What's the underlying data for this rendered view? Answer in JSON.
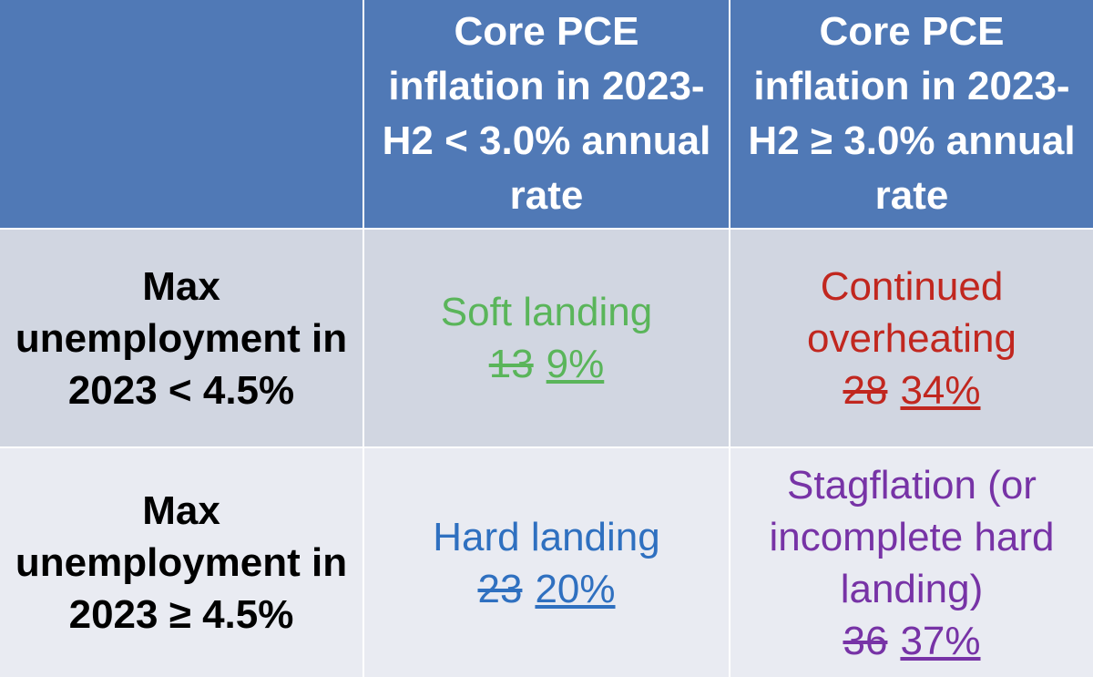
{
  "table": {
    "columns": [
      "Core PCE inflation in 2023-H2 < 3.0% annual rate",
      "Core PCE inflation in 2023-H2 ≥ 3.0% annual rate"
    ],
    "rows": [
      {
        "label": "Max unemployment in 2023 < 4.5%",
        "cells": [
          {
            "scenario": "Soft landing",
            "old": "13",
            "new": "9%"
          },
          {
            "scenario": "Continued overheating",
            "old": "28",
            "new": "34%"
          }
        ]
      },
      {
        "label": "Max unemployment in 2023 ≥ 4.5%",
        "cells": [
          {
            "scenario": "Hard landing",
            "old": "23",
            "new": "20%"
          },
          {
            "scenario": "Stagflation (or incomplete hard landing)",
            "old": "36",
            "new": "37%"
          }
        ]
      }
    ]
  }
}
